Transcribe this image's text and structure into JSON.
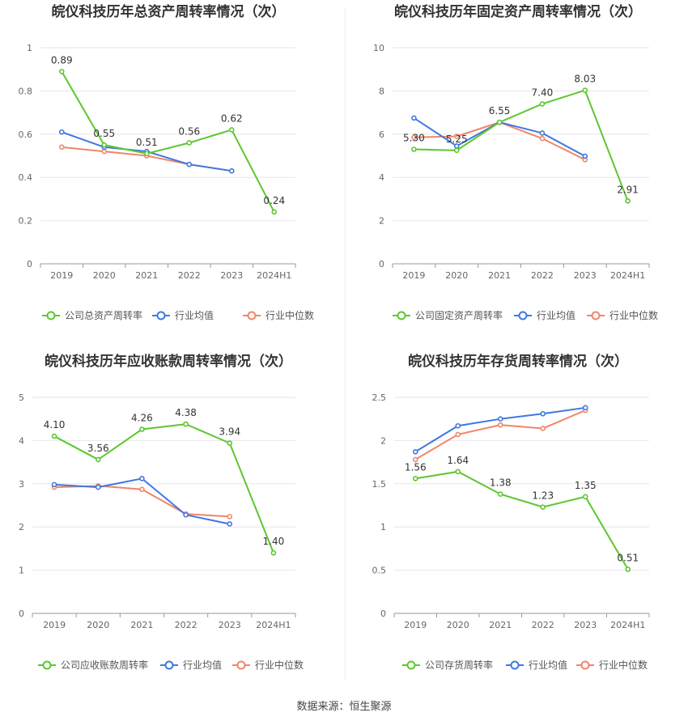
{
  "footer": {
    "source": "数据来源：恒生聚源"
  },
  "colors": {
    "company": "#5cc72e",
    "avg": "#3f78e0",
    "median": "#f0866a",
    "grid": "#e6e6ee",
    "axis": "#999999"
  },
  "chart_data": [
    {
      "type": "line",
      "title": "皖仪科技历年总资产周转率情况（次）",
      "categories": [
        "2019",
        "2020",
        "2021",
        "2022",
        "2023",
        "2024H1"
      ],
      "ylim": [
        0,
        1
      ],
      "yticks": [
        "0",
        "0.2",
        "0.4",
        "0.6",
        "0.8",
        "1"
      ],
      "ytick_values": [
        0,
        0.2,
        0.4,
        0.6,
        0.8,
        1
      ],
      "grid": true,
      "legend": "bottom",
      "series": [
        {
          "name": "公司总资产周转率",
          "color": "#5cc72e",
          "values": [
            0.89,
            0.55,
            0.51,
            0.56,
            0.62,
            0.24
          ],
          "labels": [
            "0.89",
            "0.55",
            "0.51",
            "0.56",
            "0.62",
            "0.24"
          ]
        },
        {
          "name": "行业均值",
          "color": "#3f78e0",
          "values": [
            0.61,
            0.54,
            0.52,
            0.46,
            0.43,
            null
          ]
        },
        {
          "name": "行业中位数",
          "color": "#f0866a",
          "values": [
            0.54,
            0.52,
            0.5,
            0.46,
            0.43,
            null
          ]
        }
      ]
    },
    {
      "type": "line",
      "title": "皖仪科技历年固定资产周转率情况（次）",
      "categories": [
        "2019",
        "2020",
        "2021",
        "2022",
        "2023",
        "2024H1"
      ],
      "ylim": [
        0,
        10
      ],
      "yticks": [
        "0",
        "2",
        "4",
        "6",
        "8",
        "10"
      ],
      "ytick_values": [
        0,
        2,
        4,
        6,
        8,
        10
      ],
      "grid": true,
      "legend": "bottom",
      "series": [
        {
          "name": "公司固定资产周转率",
          "color": "#5cc72e",
          "values": [
            5.3,
            5.25,
            6.55,
            7.4,
            8.03,
            2.91
          ],
          "labels": [
            "5.30",
            "5.25",
            "6.55",
            "7.40",
            "8.03",
            "2.91"
          ]
        },
        {
          "name": "行业均值",
          "color": "#3f78e0",
          "values": [
            6.75,
            5.45,
            6.55,
            6.05,
            4.98,
            null
          ]
        },
        {
          "name": "行业中位数",
          "color": "#f0866a",
          "values": [
            5.85,
            5.9,
            6.55,
            5.8,
            4.82,
            null
          ]
        }
      ]
    },
    {
      "type": "line",
      "title": "皖仪科技历年应收账款周转率情况（次）",
      "categories": [
        "2019",
        "2020",
        "2021",
        "2022",
        "2023",
        "2024H1"
      ],
      "ylim": [
        0,
        5
      ],
      "yticks": [
        "0",
        "1",
        "2",
        "3",
        "4",
        "5"
      ],
      "ytick_values": [
        0,
        1,
        2,
        3,
        4,
        5
      ],
      "grid": true,
      "legend": "bottom",
      "series": [
        {
          "name": "公司应收账款周转率",
          "color": "#5cc72e",
          "values": [
            4.1,
            3.56,
            4.26,
            4.38,
            3.94,
            1.4
          ],
          "labels": [
            "4.10",
            "3.56",
            "4.26",
            "4.38",
            "3.94",
            "1.40"
          ]
        },
        {
          "name": "行业均值",
          "color": "#3f78e0",
          "values": [
            2.98,
            2.92,
            3.12,
            2.28,
            2.07,
            null
          ]
        },
        {
          "name": "行业中位数",
          "color": "#f0866a",
          "values": [
            2.92,
            2.95,
            2.87,
            2.3,
            2.24,
            null
          ]
        }
      ]
    },
    {
      "type": "line",
      "title": "皖仪科技历年存货周转率情况（次）",
      "categories": [
        "2019",
        "2020",
        "2021",
        "2022",
        "2023",
        "2024H1"
      ],
      "ylim": [
        0,
        2.5
      ],
      "yticks": [
        "0",
        "0.5",
        "1",
        "1.5",
        "2",
        "2.5"
      ],
      "ytick_values": [
        0,
        0.5,
        1,
        1.5,
        2,
        2.5
      ],
      "grid": true,
      "legend": "bottom",
      "series": [
        {
          "name": "公司存货周转率",
          "color": "#5cc72e",
          "values": [
            1.56,
            1.64,
            1.38,
            1.23,
            1.35,
            0.51
          ],
          "labels": [
            "1.56",
            "1.64",
            "1.38",
            "1.23",
            "1.35",
            "0.51"
          ]
        },
        {
          "name": "行业均值",
          "color": "#3f78e0",
          "values": [
            1.87,
            2.17,
            2.25,
            2.31,
            2.38,
            null
          ]
        },
        {
          "name": "行业中位数",
          "color": "#f0866a",
          "values": [
            1.78,
            2.07,
            2.18,
            2.14,
            2.35,
            null
          ]
        }
      ]
    }
  ]
}
